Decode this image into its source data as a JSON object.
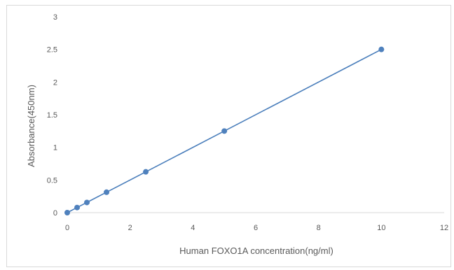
{
  "chart_data": {
    "type": "scatter",
    "title": "",
    "xlabel": "Human FOXO1A concentration(ng/ml)",
    "ylabel": "Absorbance(450nm)",
    "xlim": [
      0,
      12
    ],
    "ylim": [
      0,
      3
    ],
    "x_ticks": [
      "0",
      "2",
      "4",
      "6",
      "8",
      "10",
      "12"
    ],
    "y_ticks": [
      "0",
      "0.5",
      "1",
      "1.5",
      "2",
      "2.5",
      "3"
    ],
    "grid": false,
    "legend": "none",
    "line_color": "#4a7ebb",
    "marker_color": "#4f81bd",
    "series": [
      {
        "x": [
          0,
          0.3125,
          0.625,
          1.25,
          2.5,
          5,
          10
        ],
        "y": [
          0,
          0.078,
          0.156,
          0.313,
          0.625,
          1.25,
          2.5
        ]
      }
    ]
  }
}
